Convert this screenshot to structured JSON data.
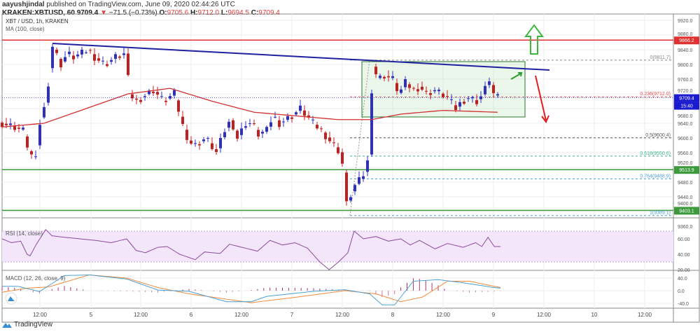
{
  "header": {
    "author": "aayushjindal",
    "published": "published on TradingView.com, June 09, 2020 02:44:26 UTC",
    "symbol": "KRAKEN:XBTUSD, 60",
    "last": "9709.4",
    "change": "−71.5 (−0.73%)",
    "o_label": "O:",
    "o": "9705.6",
    "h_label": "H:",
    "h": "9712.0",
    "l_label": "L:",
    "l": "9694.5",
    "c_label": "C:",
    "c": "9709.4"
  },
  "legend": {
    "title": "XBT / USD, 1h, KRAKEN",
    "ma": "MA (100, close)",
    "rsi": "RSI (14, close)",
    "macd": "MACD (12, 26, close, 9)"
  },
  "price_axis": [
    "9920.0",
    "9880.0",
    "9840.0",
    "9800.0",
    "9760.0",
    "9720.0",
    "9680.0",
    "9640.0",
    "9600.0",
    "9560.0",
    "9520.0",
    "9480.0",
    "9440.0",
    "9400.0",
    "9360.0"
  ],
  "price_tags": {
    "red": "9866.2",
    "last": "9709.4",
    "countdown": "15:40",
    "green1": "9513.9",
    "green2": "9403.1"
  },
  "fib": [
    {
      "label": "0(9811.7)",
      "v": 9811.7,
      "c": "#888888"
    },
    {
      "label": "0.236(9712.0)",
      "v": 9712.0,
      "c": "#e05050"
    },
    {
      "label": "0.5(9600.4)",
      "v": 9600.4,
      "c": "#555555"
    },
    {
      "label": "0.618(9550.6)",
      "v": 9550.6,
      "c": "#3cb38a"
    },
    {
      "label": "0.764(9488.9)",
      "v": 9488.9,
      "c": "#4a9fd0"
    },
    {
      "label": "1(9389.1)",
      "v": 9389.1,
      "c": "#4a9fd0"
    }
  ],
  "rsi_axis": [
    "60.00",
    "40.00",
    "20.00"
  ],
  "macd_axis": [
    "40.0",
    "0.0",
    "-40.0"
  ],
  "time_axis": [
    "12:00",
    "5",
    "12:00",
    "6",
    "12:00",
    "7",
    "12:00",
    "8",
    "12:00",
    "9",
    "12:00",
    "10",
    "12:00"
  ],
  "footer": {
    "brand": "TradingView"
  },
  "colors": {
    "up": "#3030c0",
    "down": "#c02020",
    "ma": "#d03030",
    "trend": "#2020a0",
    "resistance": "#e03030",
    "support": "#3c9a3c",
    "rsi": "#8a4a9a",
    "macd": "#4a9fd0",
    "signal": "#f08a3c"
  },
  "chart_data": {
    "type": "candlestick",
    "price_keypoints": [
      [
        0,
        9640
      ],
      [
        3,
        9630
      ],
      [
        5,
        9620
      ],
      [
        6.5,
        9560
      ],
      [
        8,
        9540
      ],
      [
        9,
        9640
      ],
      [
        10.5,
        9700
      ],
      [
        12,
        9850
      ],
      [
        14,
        9800
      ],
      [
        15.5,
        9830
      ],
      [
        17,
        9820
      ],
      [
        19,
        9830
      ],
      [
        20.5,
        9840
      ],
      [
        22,
        9820
      ],
      [
        24.5,
        9800
      ],
      [
        27,
        9820
      ],
      [
        29.5,
        9830
      ],
      [
        30.3,
        9720
      ],
      [
        32,
        9700
      ],
      [
        34.5,
        9720
      ],
      [
        36,
        9730
      ],
      [
        38.5,
        9700
      ],
      [
        41,
        9720
      ],
      [
        42.8,
        9640
      ],
      [
        44.5,
        9590
      ],
      [
        46,
        9580
      ],
      [
        48.5,
        9600
      ],
      [
        51,
        9560
      ],
      [
        53,
        9620
      ],
      [
        54.5,
        9650
      ],
      [
        56,
        9600
      ],
      [
        58,
        9640
      ],
      [
        59.5,
        9640
      ],
      [
        61,
        9610
      ],
      [
        63,
        9620
      ],
      [
        64.5,
        9660
      ],
      [
        66,
        9640
      ],
      [
        69,
        9660
      ],
      [
        71,
        9680
      ],
      [
        74,
        9640
      ],
      [
        76,
        9620
      ],
      [
        79,
        9580
      ],
      [
        80.5,
        9560
      ],
      [
        81.5,
        9500
      ],
      [
        82,
        9420
      ],
      [
        84,
        9470
      ],
      [
        85.5,
        9490
      ],
      [
        86.5,
        9510
      ],
      [
        87.5,
        9560
      ],
      [
        88.2,
        9800
      ],
      [
        89.5,
        9760
      ],
      [
        91,
        9770
      ],
      [
        93,
        9760
      ],
      [
        94.5,
        9720
      ],
      [
        96,
        9750
      ],
      [
        98,
        9730
      ],
      [
        99.5,
        9740
      ],
      [
        101,
        9720
      ],
      [
        103,
        9730
      ],
      [
        104.5,
        9720
      ],
      [
        106,
        9710
      ],
      [
        108,
        9680
      ],
      [
        109.5,
        9700
      ],
      [
        111,
        9710
      ],
      [
        113,
        9700
      ],
      [
        114.5,
        9720
      ],
      [
        116,
        9760
      ],
      [
        117,
        9720
      ],
      [
        118,
        9709
      ]
    ],
    "ma_keypoints": [
      [
        0,
        9630
      ],
      [
        10,
        9640
      ],
      [
        20,
        9680
      ],
      [
        30,
        9720
      ],
      [
        40,
        9735
      ],
      [
        50,
        9700
      ],
      [
        60,
        9670
      ],
      [
        70,
        9660
      ],
      [
        80,
        9650
      ],
      [
        88,
        9650
      ],
      [
        95,
        9665
      ],
      [
        105,
        9675
      ],
      [
        118,
        9670
      ]
    ],
    "rsi_keypoints": [
      [
        0,
        60
      ],
      [
        3,
        55
      ],
      [
        6,
        57
      ],
      [
        8,
        40
      ],
      [
        9,
        38
      ],
      [
        11,
        53
      ],
      [
        14,
        72
      ],
      [
        16,
        64
      ],
      [
        20,
        62
      ],
      [
        25,
        60
      ],
      [
        30,
        58
      ],
      [
        35,
        55
      ],
      [
        40,
        60
      ],
      [
        43,
        45
      ],
      [
        46,
        42
      ],
      [
        50,
        49
      ],
      [
        53,
        50
      ],
      [
        57,
        40
      ],
      [
        62,
        33
      ],
      [
        65,
        43
      ],
      [
        70,
        41
      ],
      [
        73,
        53
      ],
      [
        78,
        48
      ],
      [
        82,
        44
      ],
      [
        86,
        58
      ],
      [
        90,
        52
      ],
      [
        94,
        55
      ],
      [
        98,
        48
      ],
      [
        102,
        30
      ],
      [
        105,
        20
      ],
      [
        108,
        30
      ],
      [
        111,
        42
      ],
      [
        113,
        70
      ],
      [
        116,
        60
      ],
      [
        120,
        63
      ],
      [
        124,
        57
      ],
      [
        128,
        60
      ],
      [
        131,
        52
      ],
      [
        134,
        58
      ],
      [
        139,
        47
      ],
      [
        143,
        54
      ],
      [
        148,
        49
      ],
      [
        152,
        55
      ],
      [
        154,
        50
      ],
      [
        156,
        62
      ],
      [
        158,
        50
      ],
      [
        160,
        50
      ]
    ],
    "macd_keypoints": [
      [
        0,
        14
      ],
      [
        5,
        14
      ],
      [
        12,
        -3
      ],
      [
        20,
        48
      ],
      [
        28,
        50
      ],
      [
        40,
        37
      ],
      [
        50,
        2
      ],
      [
        60,
        -2
      ],
      [
        72,
        -35
      ],
      [
        80,
        -35
      ],
      [
        85,
        -18
      ],
      [
        100,
        -2
      ],
      [
        110,
        3
      ],
      [
        118,
        -10
      ],
      [
        122,
        -45
      ],
      [
        126,
        -45
      ],
      [
        132,
        30
      ],
      [
        140,
        35
      ],
      [
        148,
        25
      ],
      [
        158,
        10
      ],
      [
        160,
        8
      ]
    ],
    "signal_keypoints": [
      [
        0,
        -5
      ],
      [
        8,
        8
      ],
      [
        15,
        12
      ],
      [
        28,
        50
      ],
      [
        40,
        40
      ],
      [
        50,
        10
      ],
      [
        60,
        -10
      ],
      [
        80,
        -38
      ],
      [
        95,
        -20
      ],
      [
        110,
        0
      ],
      [
        120,
        -10
      ],
      [
        128,
        -35
      ],
      [
        135,
        -20
      ],
      [
        143,
        30
      ],
      [
        150,
        30
      ],
      [
        160,
        10
      ]
    ],
    "rsi_range": [
      20,
      80
    ],
    "macd_range": [
      -50,
      50
    ],
    "price_range": [
      9360,
      9920
    ]
  }
}
